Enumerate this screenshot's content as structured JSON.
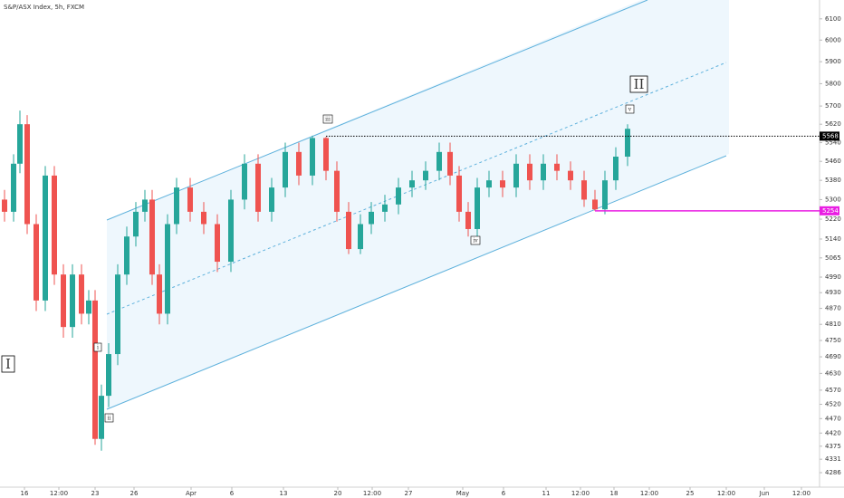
{
  "chart_data": {
    "type": "candlestick",
    "title": "S&P/ASX Index, 5h, FXCM",
    "x": [
      5,
      15,
      22,
      30,
      40,
      50,
      60,
      70,
      80,
      90,
      98,
      105,
      112,
      120,
      130,
      140,
      150,
      160,
      168,
      176,
      185,
      195,
      210,
      225,
      240,
      255,
      270,
      285,
      300,
      315,
      330,
      345,
      360,
      372,
      385,
      398,
      410,
      425,
      440,
      455,
      470,
      485,
      497,
      507,
      517,
      527,
      540,
      555,
      570,
      585,
      600,
      615,
      630,
      645,
      657,
      668,
      680,
      693
    ],
    "open": [
      5300,
      5250,
      5450,
      5620,
      5200,
      4900,
      5400,
      5000,
      4800,
      5000,
      4850,
      4900,
      4400,
      4550,
      4700,
      5000,
      5150,
      5250,
      5300,
      5000,
      4850,
      5200,
      5350,
      5250,
      5200,
      5050,
      5300,
      5450,
      5250,
      5350,
      5500,
      5400,
      5560,
      5420,
      5250,
      5100,
      5200,
      5250,
      5280,
      5350,
      5380,
      5420,
      5500,
      5400,
      5250,
      5180,
      5350,
      5380,
      5350,
      5450,
      5380,
      5450,
      5420,
      5380,
      5300,
      5260,
      5380,
      5480
    ],
    "high": [
      5340,
      5490,
      5680,
      5660,
      5240,
      5440,
      5440,
      5040,
      5040,
      5040,
      4940,
      4940,
      4590,
      4740,
      5040,
      5190,
      5290,
      5340,
      5340,
      5040,
      5240,
      5390,
      5390,
      5290,
      5240,
      5340,
      5490,
      5490,
      5390,
      5540,
      5540,
      5570,
      5565,
      5460,
      5290,
      5240,
      5290,
      5320,
      5390,
      5420,
      5460,
      5540,
      5540,
      5440,
      5290,
      5390,
      5420,
      5420,
      5490,
      5490,
      5490,
      5490,
      5460,
      5420,
      5340,
      5420,
      5520,
      5620
    ],
    "low": [
      5210,
      5210,
      5410,
      5160,
      4860,
      4860,
      4960,
      4760,
      4760,
      4810,
      4810,
      4380,
      4360,
      4510,
      4660,
      4960,
      5110,
      5210,
      4960,
      4810,
      4810,
      5160,
      5210,
      5160,
      5010,
      5010,
      5260,
      5210,
      5210,
      5310,
      5360,
      5360,
      5380,
      5210,
      5080,
      5080,
      5160,
      5210,
      5240,
      5310,
      5340,
      5380,
      5360,
      5210,
      5150,
      5150,
      5310,
      5310,
      5310,
      5340,
      5340,
      5380,
      5340,
      5270,
      5254,
      5240,
      5340,
      5440
    ],
    "close": [
      5250,
      5450,
      5620,
      5200,
      4900,
      5400,
      5000,
      4800,
      5000,
      4850,
      4900,
      4400,
      4550,
      4700,
      5000,
      5150,
      5250,
      5300,
      5000,
      4850,
      5200,
      5350,
      5250,
      5200,
      5050,
      5300,
      5450,
      5250,
      5350,
      5500,
      5400,
      5560,
      5420,
      5250,
      5100,
      5200,
      5250,
      5280,
      5350,
      5380,
      5420,
      5500,
      5400,
      5250,
      5180,
      5350,
      5380,
      5350,
      5450,
      5380,
      5450,
      5420,
      5380,
      5300,
      5260,
      5380,
      5480,
      5600
    ],
    "up_color": "#26a69a",
    "down_color": "#ef5350",
    "xlim": [
      0,
      905
    ],
    "xticks": [
      {
        "value": 27,
        "label": "16"
      },
      {
        "value": 65,
        "label": "12:00"
      },
      {
        "value": 105,
        "label": "23"
      },
      {
        "value": 148,
        "label": "26"
      },
      {
        "value": 211,
        "label": "Apr"
      },
      {
        "value": 256,
        "label": "6"
      },
      {
        "value": 313,
        "label": "13"
      },
      {
        "value": 373,
        "label": "20"
      },
      {
        "value": 411,
        "label": "12:00"
      },
      {
        "value": 451,
        "label": "27"
      },
      {
        "value": 511,
        "label": "May"
      },
      {
        "value": 556,
        "label": "6"
      },
      {
        "value": 603,
        "label": "11"
      },
      {
        "value": 641,
        "label": "12:00"
      },
      {
        "value": 678,
        "label": "18"
      },
      {
        "value": 717,
        "label": "12:00"
      },
      {
        "value": 762,
        "label": "25"
      },
      {
        "value": 802,
        "label": "12:00"
      },
      {
        "value": 844,
        "label": "Jun"
      },
      {
        "value": 885,
        "label": "12:00"
      }
    ],
    "ylim": [
      4238,
      6190
    ],
    "ylog": true,
    "yticks": [
      6100,
      6000,
      5900,
      5800,
      5700,
      5620,
      5540,
      5460,
      5380,
      5300,
      5220,
      5140,
      5065,
      4990,
      4930,
      4870,
      4810,
      4750,
      4690,
      4630,
      4570,
      4520,
      4470,
      4420,
      4375,
      4331,
      4286
    ],
    "price_lines": [
      {
        "value": 5568,
        "color": "#000000",
        "style": "dotted",
        "from_x": 360
      },
      {
        "value": 5254,
        "color": "#e91ee3",
        "style": "solid",
        "from_x": 657
      }
    ],
    "wave_labels": {
      "big_1": "I",
      "big_2": "II",
      "i": "i",
      "ii": "ii",
      "iii": "iii",
      "iv": "iv",
      "v": "v"
    }
  }
}
